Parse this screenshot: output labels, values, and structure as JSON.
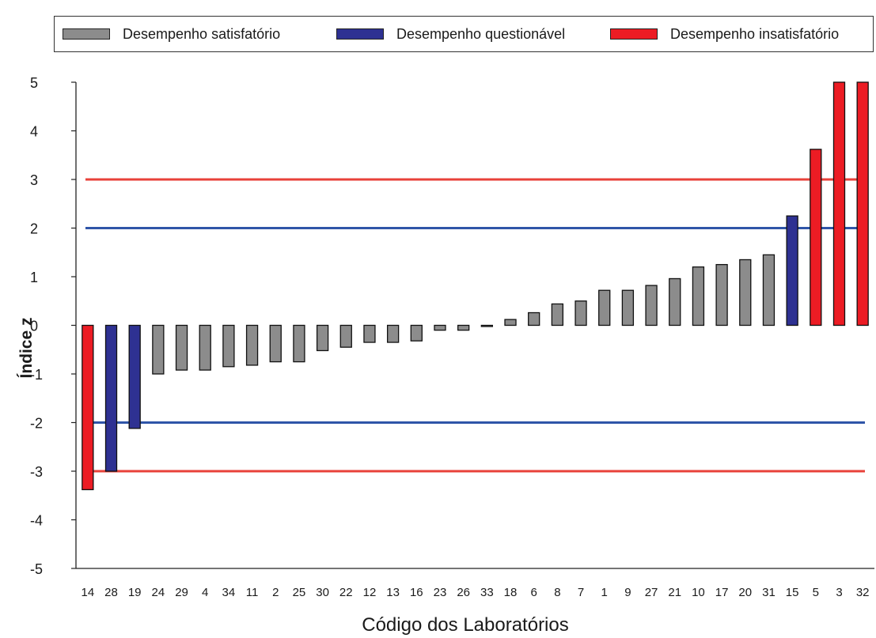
{
  "chart_data": {
    "type": "bar",
    "title": "",
    "xlabel": "Código dos Laboratórios",
    "ylabel": "Índice z",
    "ylim": [
      -5,
      5
    ],
    "yticks": [
      5,
      4,
      3,
      2,
      1,
      0,
      -1,
      -2,
      -3,
      -4,
      -5
    ],
    "grid": false,
    "legend_position": "top",
    "legend": [
      {
        "key": "satisfactory",
        "label": "Desempenho satisfatório",
        "color": "#8c8c8c"
      },
      {
        "key": "questionable",
        "label": "Desempenho questionável",
        "color": "#2e3192"
      },
      {
        "key": "unsatisfactory",
        "label": "Desempenho insatisfatório",
        "color": "#ec1c24"
      }
    ],
    "categories": [
      "14",
      "28",
      "19",
      "24",
      "29",
      "4",
      "34",
      "11",
      "2",
      "25",
      "30",
      "22",
      "12",
      "13",
      "16",
      "23",
      "26",
      "33",
      "18",
      "6",
      "8",
      "7",
      "1",
      "9",
      "27",
      "21",
      "10",
      "17",
      "20",
      "31",
      "15",
      "5",
      "3",
      "32"
    ],
    "values": [
      -3.38,
      -3.0,
      -2.12,
      -1.0,
      -0.92,
      -0.92,
      -0.85,
      -0.82,
      -0.75,
      -0.75,
      -0.52,
      -0.45,
      -0.35,
      -0.35,
      -0.32,
      -0.1,
      -0.1,
      -0.02,
      0.12,
      0.26,
      0.44,
      0.5,
      0.72,
      0.72,
      0.82,
      0.96,
      1.2,
      1.25,
      1.35,
      1.45,
      2.25,
      3.62,
      5.0,
      5.0
    ],
    "performance": [
      "unsatisfactory",
      "questionable",
      "questionable",
      "satisfactory",
      "satisfactory",
      "satisfactory",
      "satisfactory",
      "satisfactory",
      "satisfactory",
      "satisfactory",
      "satisfactory",
      "satisfactory",
      "satisfactory",
      "satisfactory",
      "satisfactory",
      "satisfactory",
      "satisfactory",
      "satisfactory",
      "satisfactory",
      "satisfactory",
      "satisfactory",
      "satisfactory",
      "satisfactory",
      "satisfactory",
      "satisfactory",
      "satisfactory",
      "satisfactory",
      "satisfactory",
      "satisfactory",
      "satisfactory",
      "questionable",
      "unsatisfactory",
      "unsatisfactory",
      "unsatisfactory"
    ],
    "reference_lines": [
      {
        "y": 3,
        "color": "#e8413a"
      },
      {
        "y": -3,
        "color": "#e8413a"
      },
      {
        "y": 2,
        "color": "#2f55a8"
      },
      {
        "y": -2,
        "color": "#2f55a8"
      }
    ]
  }
}
